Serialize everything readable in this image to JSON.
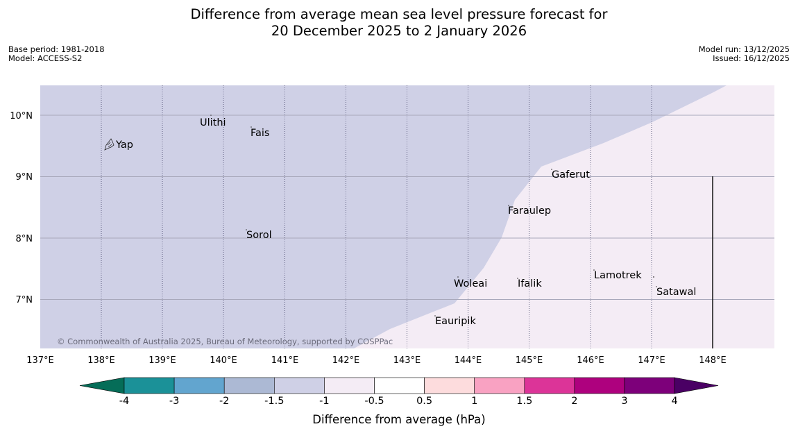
{
  "title": {
    "line1": "Difference from average mean sea level pressure forecast for",
    "line2": "20 December 2025 to 2 January 2026"
  },
  "meta_left": {
    "base_period": "Base period: 1981-2018",
    "model": "Model: ACCESS-S2"
  },
  "meta_right": {
    "model_run": "Model run: 13/12/2025",
    "issued": "Issued: 16/12/2025"
  },
  "map": {
    "copyright": "© Commonwealth of Australia 2025, Bureau of Meteorology, supported by COSPPac",
    "lon_ticks": [
      "137°E",
      "138°E",
      "139°E",
      "140°E",
      "141°E",
      "142°E",
      "143°E",
      "144°E",
      "145°E",
      "146°E",
      "147°E",
      "148°E"
    ],
    "lat_ticks": [
      "10°N",
      "9°N",
      "8°N",
      "7°N"
    ],
    "places": [
      "Yap",
      "Ulithi",
      "Fais",
      "Gaferut",
      "Faraulep",
      "Sorol",
      "Lamotrek",
      "Woleai",
      "Ifalik",
      "Satawal",
      "Eauripik"
    ],
    "region_colors": {
      "minus_1_5_to_minus_1": "#cfd0e6",
      "minus_1_to_minus_0_5": "#f4ecf5"
    }
  },
  "colorbar": {
    "label": "Difference from average (hPa)",
    "ticks": [
      "-4",
      "-3",
      "-2",
      "-1.5",
      "-1",
      "-0.5",
      "0.5",
      "1",
      "1.5",
      "2",
      "3",
      "4"
    ],
    "colors": [
      "#056d58",
      "#1b9198",
      "#62a5cf",
      "#acb9d4",
      "#cfd0e6",
      "#f4ecf5",
      "#ffffff",
      "#fddcdd",
      "#f9a2c2",
      "#dc3498",
      "#ae017e",
      "#7d007a",
      "#4a0064"
    ]
  }
}
